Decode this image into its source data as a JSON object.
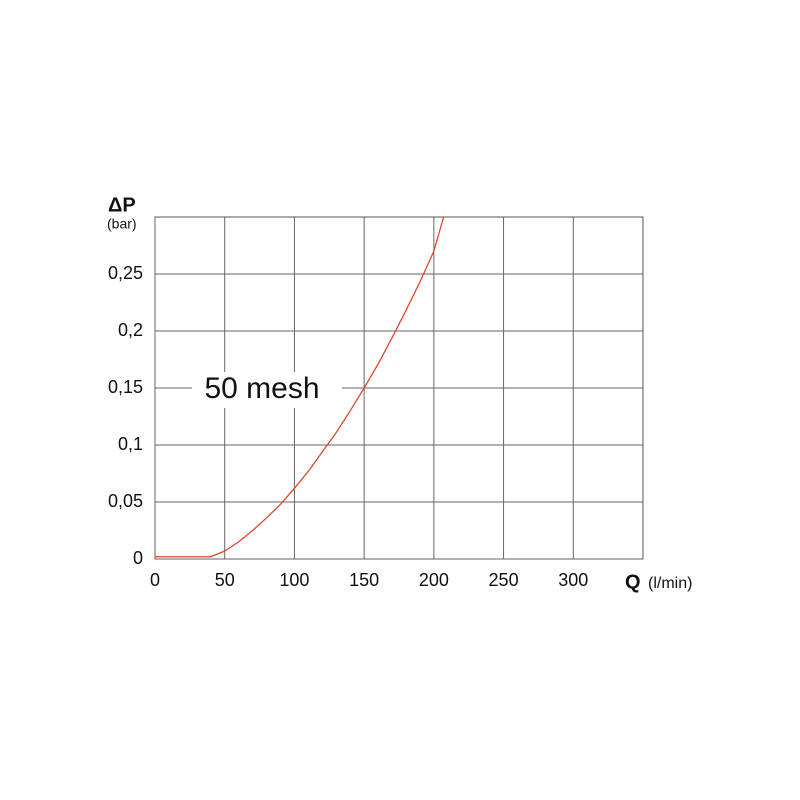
{
  "chart_data": {
    "type": "line",
    "y_label": "ΔP",
    "y_unit": "(bar)",
    "x_label": "Q",
    "x_unit": "(l/min)",
    "annotation": "50 mesh",
    "x": [
      0,
      40,
      50,
      60,
      70,
      80,
      90,
      100,
      110,
      120,
      130,
      140,
      150,
      160,
      170,
      180,
      190,
      200,
      207
    ],
    "series": [
      {
        "color": "#d9482b",
        "values": [
          0.002,
          0.002,
          0.007,
          0.015,
          0.025,
          0.036,
          0.048,
          0.062,
          0.077,
          0.094,
          0.111,
          0.13,
          0.15,
          0.171,
          0.194,
          0.218,
          0.243,
          0.27,
          0.3
        ]
      }
    ],
    "xlim": [
      0,
      350
    ],
    "xticks": [
      0,
      50,
      100,
      150,
      200,
      250,
      300
    ],
    "ylim": [
      0,
      0.3
    ],
    "yticks": [
      0,
      {
        "value": 0.05,
        "label": "0,05"
      },
      {
        "value": 0.1,
        "label": "0,1"
      },
      {
        "value": 0.15,
        "label": "0,15"
      },
      {
        "value": 0.2,
        "label": "0,2"
      },
      {
        "value": 0.25,
        "label": "0,25"
      }
    ],
    "grid": true
  }
}
